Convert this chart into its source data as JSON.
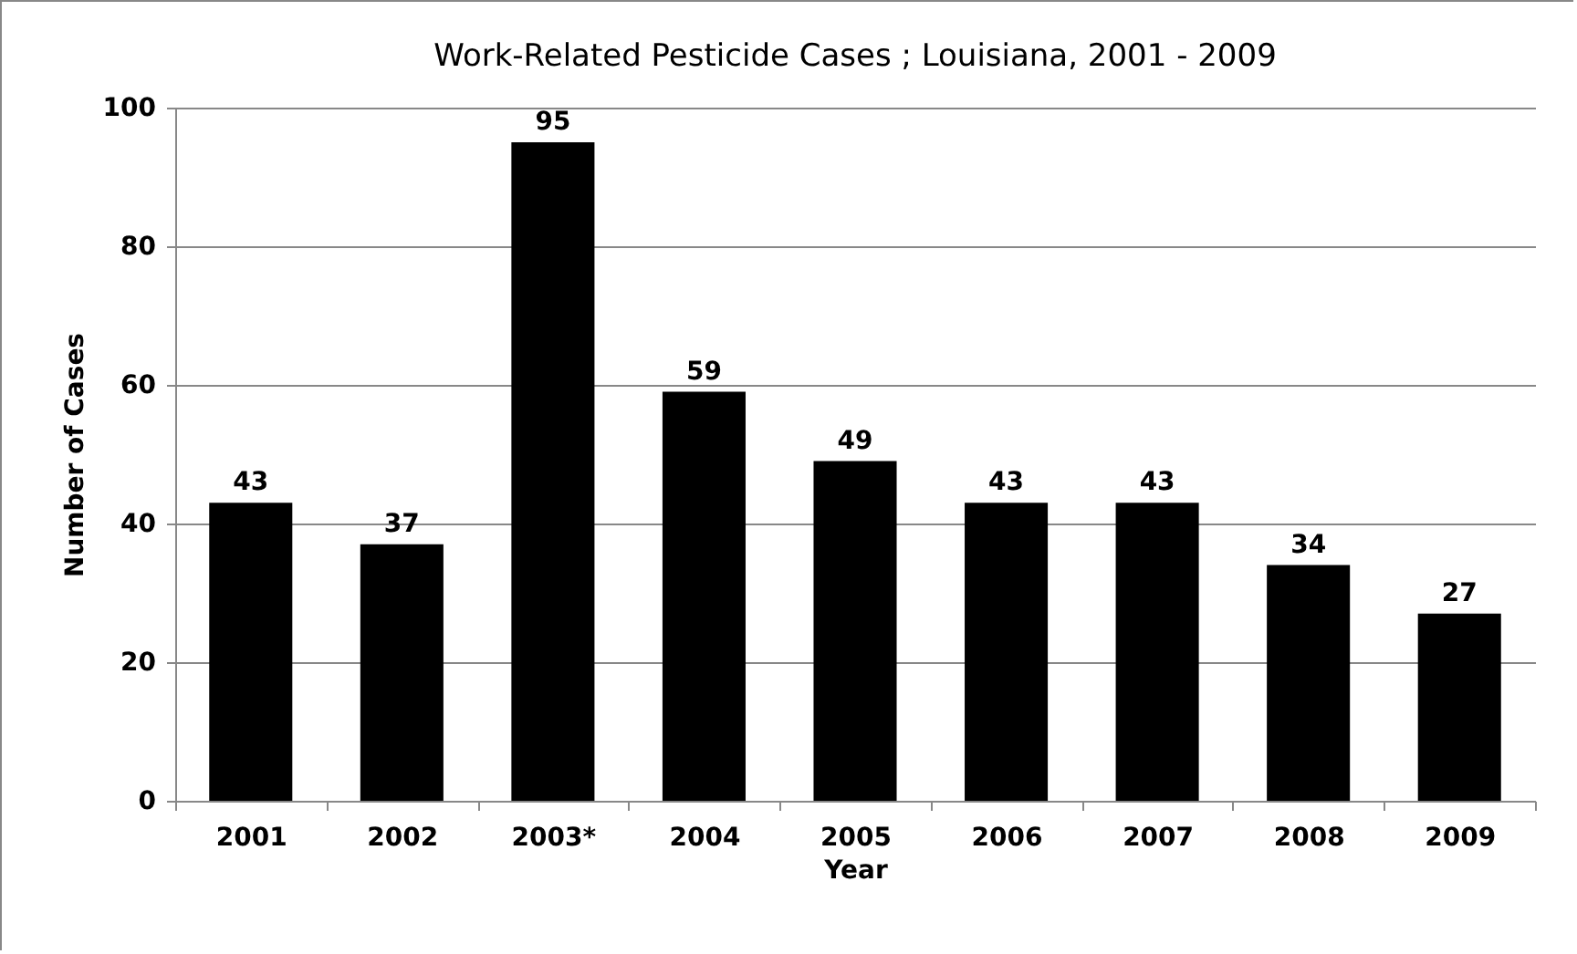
{
  "chart_data": {
    "type": "bar",
    "title": "Work-Related Pesticide Cases ; Louisiana, 2001 - 2009",
    "xlabel": "Year",
    "ylabel": "Number of Cases",
    "categories": [
      "2001",
      "2002",
      "2003*",
      "2004",
      "2005",
      "2006",
      "2007",
      "2008",
      "2009"
    ],
    "values": [
      43,
      37,
      95,
      59,
      49,
      43,
      43,
      34,
      27
    ],
    "color": "#000000",
    "ylim": [
      0,
      100
    ],
    "yticks": [
      0,
      20,
      40,
      60,
      80,
      100
    ],
    "grid": "y",
    "data_labels": true
  }
}
